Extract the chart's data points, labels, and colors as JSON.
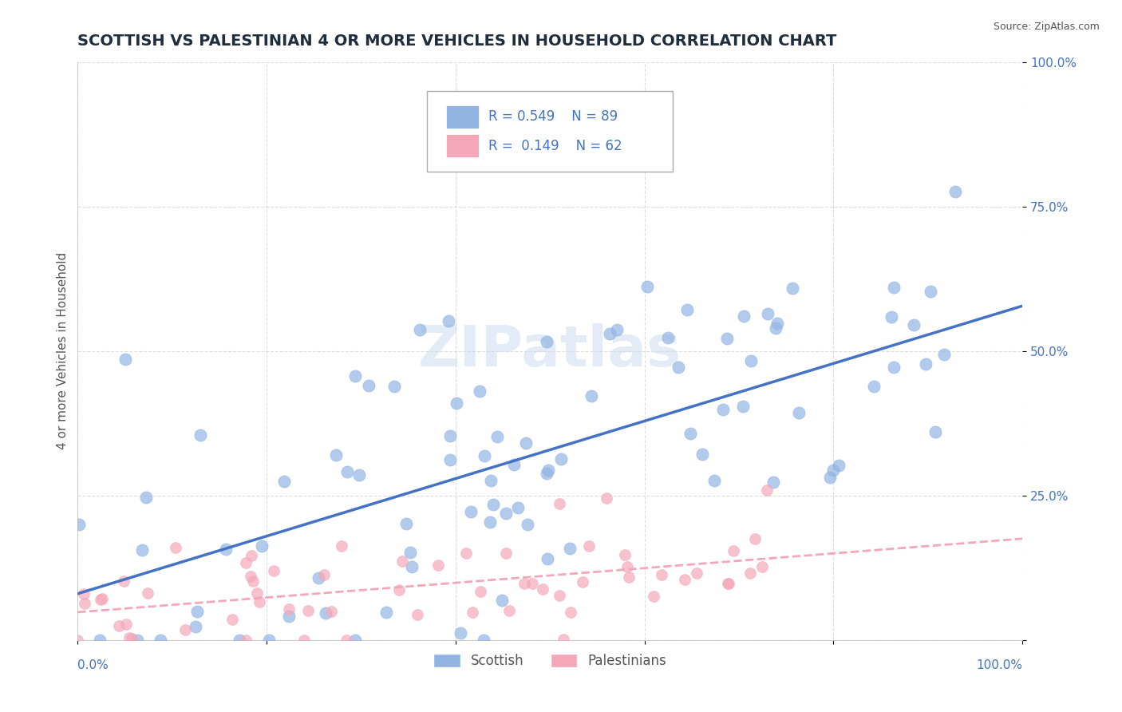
{
  "title": "SCOTTISH VS PALESTINIAN 4 OR MORE VEHICLES IN HOUSEHOLD CORRELATION CHART",
  "source": "Source: ZipAtlas.com",
  "ylabel": "4 or more Vehicles in Household",
  "xlim": [
    0,
    1
  ],
  "ylim": [
    0,
    1
  ],
  "watermark": "ZIPatlas",
  "legend_r_scottish": "R = 0.549",
  "legend_n_scottish": "N = 89",
  "legend_r_palestinian": "R =  0.149",
  "legend_n_palestinian": "N = 62",
  "scottish_color": "#92b4e3",
  "palestinian_color": "#f4a7b9",
  "scottish_line_color": "#4472c4",
  "palestinian_line_color": "#f4a7b9",
  "title_color": "#1f2d3d",
  "axis_label_color": "#4472c4",
  "background_color": "#ffffff",
  "grid_color": "#d0d0d0",
  "title_fontsize": 14,
  "axis_fontsize": 11
}
